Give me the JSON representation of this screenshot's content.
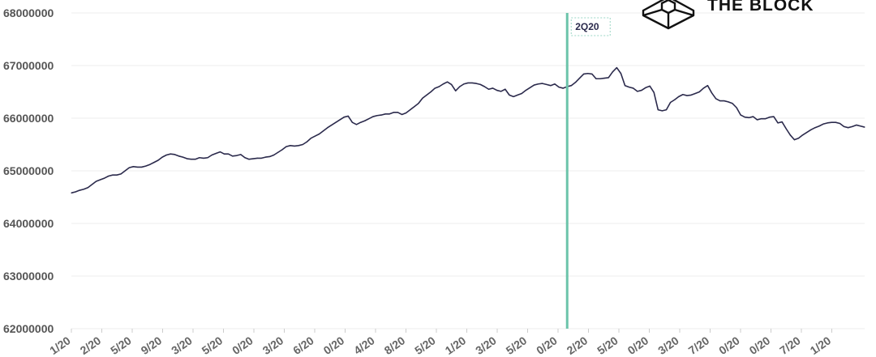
{
  "brand": {
    "name": "THE BLOCK",
    "icon": "cube-icon"
  },
  "chart_data": {
    "type": "line",
    "title": "",
    "xlabel": "",
    "ylabel": "",
    "ylim": [
      62000000,
      68000000
    ],
    "yticks": [
      "68000000",
      "67000000",
      "66000000",
      "65000000",
      "64000000",
      "63000000",
      "62000000"
    ],
    "ytick_values": [
      68000000,
      67000000,
      66000000,
      65000000,
      64000000,
      63000000,
      62000000
    ],
    "xticks": [
      "1/20",
      "2/20",
      "5/20",
      "9/20",
      "3/20",
      "5/20",
      "0/20",
      "3/20",
      "6/20",
      "0/20",
      "4/20",
      "8/20",
      "5/20",
      "1/20",
      "3/20",
      "5/20",
      "0/20",
      "2/20",
      "5/20",
      "0/20",
      "3/20",
      "7/20",
      "0/20",
      "0/20",
      "7/20",
      "1/20"
    ],
    "grid": true,
    "colors": {
      "line": "#2b2a4c",
      "marker": "#6cc4aa"
    },
    "annotation": {
      "label": "2Q20",
      "at_point_index": 120
    },
    "series": [
      {
        "values": [
          64580000,
          64600000,
          64630000,
          64650000,
          64680000,
          64740000,
          64800000,
          64830000,
          64860000,
          64900000,
          64920000,
          64920000,
          64940000,
          65000000,
          65060000,
          65080000,
          65070000,
          65070000,
          65090000,
          65120000,
          65160000,
          65200000,
          65260000,
          65300000,
          65320000,
          65310000,
          65280000,
          65260000,
          65230000,
          65220000,
          65220000,
          65250000,
          65240000,
          65250000,
          65300000,
          65330000,
          65360000,
          65320000,
          65320000,
          65280000,
          65290000,
          65310000,
          65250000,
          65220000,
          65230000,
          65240000,
          65240000,
          65260000,
          65270000,
          65300000,
          65350000,
          65400000,
          65460000,
          65480000,
          65470000,
          65480000,
          65500000,
          65550000,
          65620000,
          65660000,
          65700000,
          65760000,
          65820000,
          65870000,
          65920000,
          65970000,
          66020000,
          66040000,
          65920000,
          65880000,
          65920000,
          65950000,
          65990000,
          66030000,
          66050000,
          66060000,
          66080000,
          66080000,
          66110000,
          66110000,
          66070000,
          66100000,
          66160000,
          66220000,
          66280000,
          66380000,
          66440000,
          66500000,
          66570000,
          66600000,
          66650000,
          66690000,
          66640000,
          66520000,
          66600000,
          66650000,
          66670000,
          66670000,
          66660000,
          66640000,
          66600000,
          66550000,
          66570000,
          66530000,
          66510000,
          66550000,
          66440000,
          66410000,
          66440000,
          66470000,
          66530000,
          66580000,
          66630000,
          66650000,
          66660000,
          66640000,
          66620000,
          66650000,
          66590000,
          66570000,
          66600000,
          66620000,
          66680000,
          66760000,
          66840000,
          66850000,
          66840000,
          66750000,
          66750000,
          66760000,
          66770000,
          66880000,
          66960000,
          66850000,
          66620000,
          66590000,
          66570000,
          66510000,
          66530000,
          66580000,
          66610000,
          66490000,
          66160000,
          66140000,
          66160000,
          66300000,
          66350000,
          66410000,
          66450000,
          66430000,
          66440000,
          66470000,
          66500000,
          66570000,
          66620000,
          66480000,
          66370000,
          66330000,
          66330000,
          66310000,
          66280000,
          66200000,
          66060000,
          66020000,
          66010000,
          66030000,
          65970000,
          65990000,
          65990000,
          66020000,
          66030000,
          65910000,
          65930000,
          65800000,
          65680000,
          65590000,
          65620000,
          65680000,
          65730000,
          65780000,
          65820000,
          65850000,
          65890000,
          65910000,
          65920000,
          65920000,
          65900000,
          65840000,
          65820000,
          65840000,
          65870000,
          65850000,
          65830000
        ]
      }
    ]
  }
}
